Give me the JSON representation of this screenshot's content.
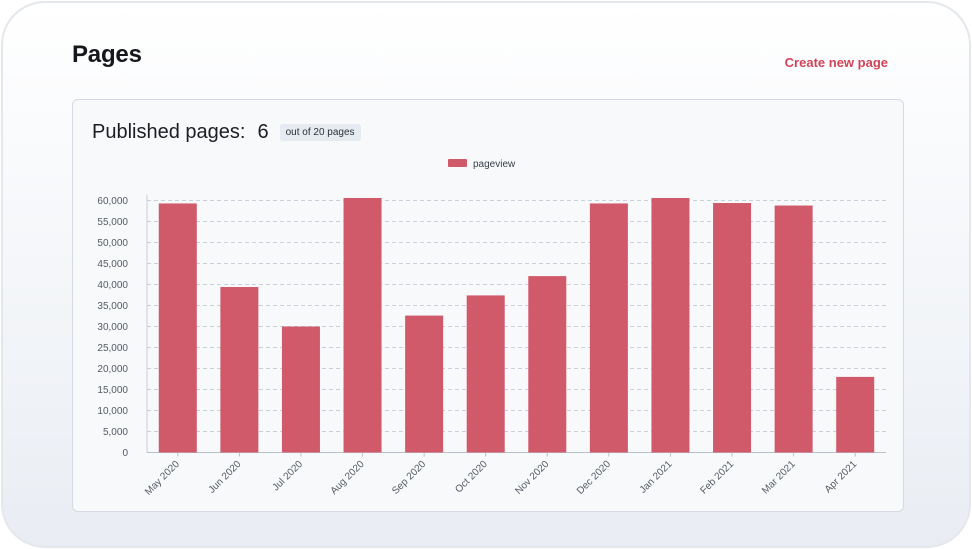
{
  "header": {
    "title": "Pages",
    "create_link": "Create new page"
  },
  "card": {
    "heading": "Published pages:",
    "published_count": "6",
    "badge": "out of 20 pages"
  },
  "colors": {
    "bar": "#d05a6a",
    "accent": "#d04358"
  },
  "chart_data": {
    "type": "bar",
    "categories": [
      "May 2020",
      "Jun 2020",
      "Jul 2020",
      "Aug 2020",
      "Sep 2020",
      "Oct 2020",
      "Nov 2020",
      "Dec 2020",
      "Jan 2021",
      "Feb 2021",
      "Mar 2021",
      "Apr 2021"
    ],
    "series": [
      {
        "name": "pageview",
        "values": [
          59300,
          39400,
          30000,
          60600,
          32600,
          37400,
          42000,
          59300,
          60600,
          59400,
          58800,
          18000
        ]
      }
    ],
    "ylim": [
      0,
      60000
    ],
    "yticks": [
      0,
      5000,
      10000,
      15000,
      20000,
      25000,
      30000,
      35000,
      40000,
      45000,
      50000,
      55000,
      60000
    ],
    "ytick_labels": [
      "0",
      "5,000",
      "10,000",
      "15,000",
      "20,000",
      "25,000",
      "30,000",
      "35,000",
      "40,000",
      "45,000",
      "50,000",
      "55,000",
      "60,000"
    ],
    "grid": true,
    "legend": "top-center"
  }
}
